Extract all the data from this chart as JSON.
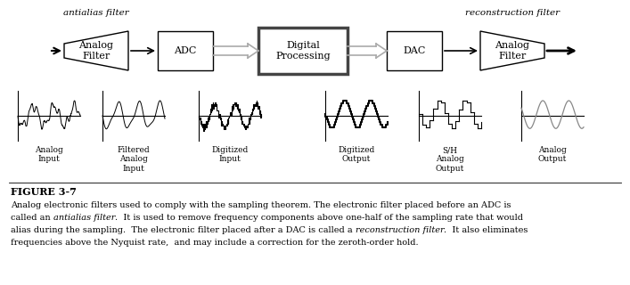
{
  "bg_color": "#ffffff",
  "antialias_label": "antialias filter",
  "reconstruction_label": "reconstruction filter",
  "figure_label": "FIGURE 3-7",
  "caption": [
    {
      "parts": [
        {
          "text": "Analog electronic filters used to comply with the sampling theorem. The electronic filter placed before an ADC is",
          "italic": false
        }
      ]
    },
    {
      "parts": [
        {
          "text": "called an ",
          "italic": false
        },
        {
          "text": "antialias filter",
          "italic": true
        },
        {
          "text": ".  It is used to remove frequency components above one-half of the sampling rate that would",
          "italic": false
        }
      ]
    },
    {
      "parts": [
        {
          "text": "alias during the sampling.  The electronic filter placed after a DAC is called a ",
          "italic": false
        },
        {
          "text": "reconstruction filter",
          "italic": true
        },
        {
          "text": ".  It also eliminates",
          "italic": false
        }
      ]
    },
    {
      "parts": [
        {
          "text": "frequencies above the Nyquist rate,  and may include a correction for the zeroth-order hold.",
          "italic": false
        }
      ]
    }
  ],
  "sig_labels": [
    "Analog\nInput",
    "Filtered\nAnalog\nInput",
    "Digitized\nInput",
    "Digitized\nOutput",
    "S/H\nAnalog\nOutput",
    "Analog\nOutput"
  ]
}
